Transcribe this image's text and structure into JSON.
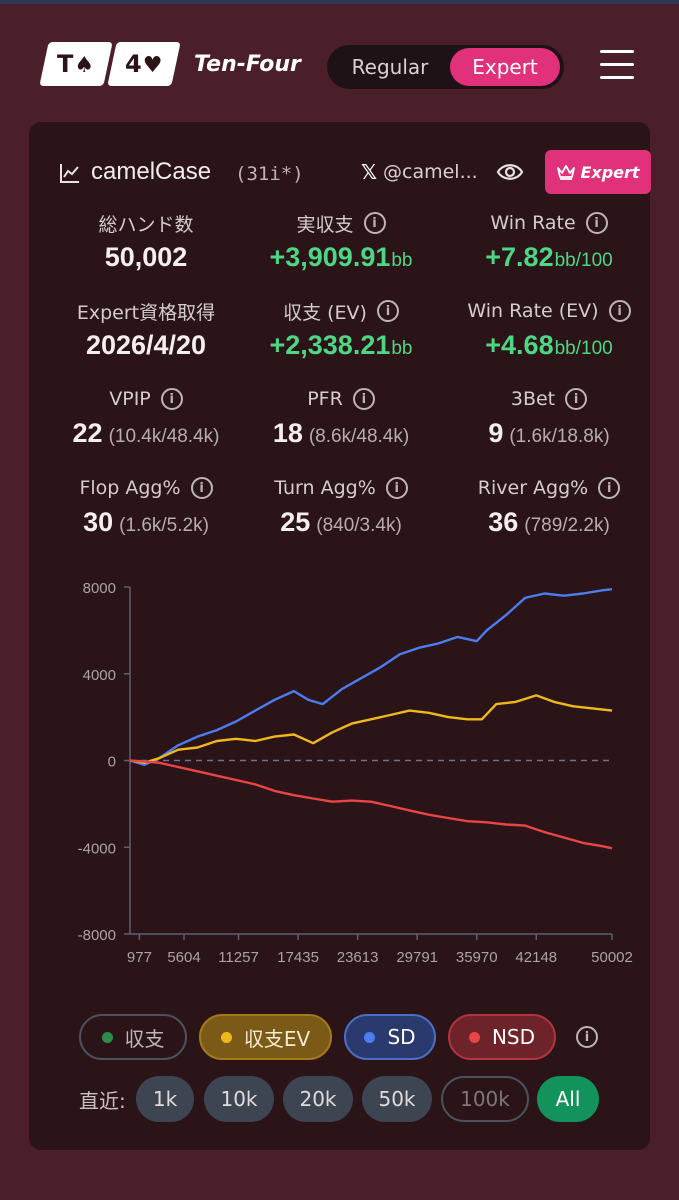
{
  "header": {
    "logo": {
      "card1_rank": "T",
      "card1_suit": "♠",
      "card2_rank": "4",
      "card2_suit": "♥"
    },
    "brand": "Ten-Four",
    "modes": {
      "regular": "Regular",
      "expert": "Expert",
      "active": "Expert"
    }
  },
  "profile": {
    "username": "camelCase",
    "tag": "(31i*)",
    "x_logo": "𝕏",
    "x_handle": "@camel...",
    "badge": "Expert"
  },
  "stats": [
    {
      "label": "総ハンド数",
      "value": "50,002",
      "info": false
    },
    {
      "label": "実収支",
      "value": "+3,909.91",
      "unit": "bb",
      "info": true,
      "green": true
    },
    {
      "label": "Win Rate",
      "value": "+7.82",
      "unit": "bb/100",
      "info": true,
      "green": true
    },
    {
      "label": "Expert資格取得",
      "value": "2026/4/20",
      "info": false
    },
    {
      "label": "収支 (EV)",
      "value": "+2,338.21",
      "unit": "bb",
      "info": true,
      "green": true
    },
    {
      "label": "Win Rate (EV)",
      "value": "+4.68",
      "unit": "bb/100",
      "info": true,
      "green": true
    },
    {
      "label": "VPIP",
      "value": "22",
      "sub": "(10.4k/48.4k)",
      "info": true
    },
    {
      "label": "PFR",
      "value": "18",
      "sub": "(8.6k/48.4k)",
      "info": true
    },
    {
      "label": "3Bet",
      "value": "9",
      "sub": "(1.6k/18.8k)",
      "info": true
    },
    {
      "label": "Flop Agg%",
      "value": "30",
      "sub": "(1.6k/5.2k)",
      "info": true
    },
    {
      "label": "Turn Agg%",
      "value": "25",
      "sub": "(840/3.4k)",
      "info": true
    },
    {
      "label": "River Agg%",
      "value": "36",
      "sub": "(789/2.2k)",
      "info": true
    }
  ],
  "info_glyph": "i",
  "chart_data": {
    "type": "line",
    "x_ticks": [
      "977",
      "5604",
      "11257",
      "17435",
      "23613",
      "29791",
      "35970",
      "42148",
      "50002"
    ],
    "y_ticks": [
      "8000",
      "4000",
      "0",
      "-4000",
      "-8000"
    ],
    "xlim": [
      0,
      50002
    ],
    "ylim": [
      -8000,
      8000
    ],
    "zero_line": "dashed",
    "series": [
      {
        "name": "SD",
        "color": "#4a7df0",
        "x": [
          0,
          1500,
          3000,
          5000,
          7000,
          9000,
          11000,
          13000,
          15000,
          17000,
          18500,
          20000,
          22000,
          24000,
          26000,
          28000,
          30000,
          32000,
          34000,
          35970,
          37000,
          39000,
          41000,
          43000,
          45000,
          47000,
          49000,
          50002
        ],
        "y": [
          0,
          -200,
          100,
          700,
          1100,
          1400,
          1800,
          2300,
          2800,
          3200,
          2800,
          2600,
          3300,
          3800,
          4300,
          4900,
          5200,
          5400,
          5700,
          5500,
          6000,
          6700,
          7500,
          7700,
          7600,
          7700,
          7850,
          7900
        ]
      },
      {
        "name": "収支EV",
        "color": "#f0b81c",
        "x": [
          0,
          1500,
          3000,
          5000,
          7000,
          9000,
          11000,
          13000,
          15000,
          17000,
          19000,
          21000,
          23000,
          25000,
          27000,
          29000,
          31000,
          33000,
          35000,
          36500,
          38000,
          40000,
          42148,
          44000,
          46000,
          48000,
          50002
        ],
        "y": [
          0,
          -100,
          100,
          500,
          600,
          900,
          1000,
          900,
          1100,
          1200,
          800,
          1300,
          1700,
          1900,
          2100,
          2300,
          2200,
          2000,
          1900,
          1900,
          2600,
          2700,
          3000,
          2700,
          2500,
          2400,
          2300
        ]
      },
      {
        "name": "NSD",
        "color": "#e84545",
        "x": [
          0,
          1500,
          3000,
          5000,
          7000,
          9000,
          11000,
          13000,
          15000,
          17000,
          19000,
          21000,
          23000,
          25000,
          27000,
          29000,
          31000,
          33000,
          35000,
          37000,
          39000,
          41000,
          43000,
          45000,
          47000,
          49000,
          50002
        ],
        "y": [
          0,
          -50,
          -100,
          -300,
          -500,
          -700,
          -900,
          -1100,
          -1400,
          -1600,
          -1750,
          -1900,
          -1850,
          -1900,
          -2100,
          -2300,
          -2500,
          -2650,
          -2800,
          -2850,
          -2950,
          -3000,
          -3300,
          -3550,
          -3800,
          -3950,
          -4050
        ]
      }
    ]
  },
  "legend": [
    {
      "label": "収支",
      "color": "#2e8b4a"
    },
    {
      "label": "収支EV",
      "color": "#f0b81c"
    },
    {
      "label": "SD",
      "color": "#4a7df0"
    },
    {
      "label": "NSD",
      "color": "#e84545"
    }
  ],
  "recent": {
    "label": "直近:",
    "options": [
      "1k",
      "10k",
      "20k",
      "50k",
      "100k",
      "All"
    ],
    "selected": "All"
  }
}
